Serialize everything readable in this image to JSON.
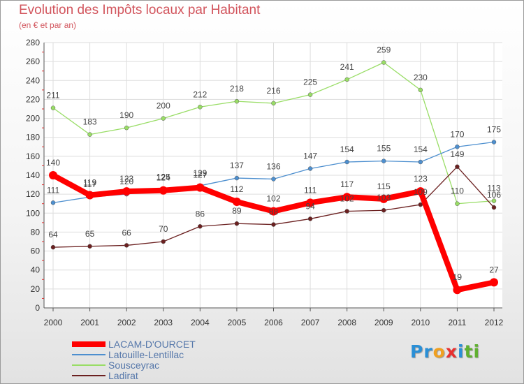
{
  "title": "Evolution des Impôts locaux par Habitant",
  "subtitle": "(en € et par an)",
  "logo": {
    "letters": [
      "P",
      "r",
      "o",
      "x",
      "i",
      "t",
      "i"
    ],
    "colors": [
      "#2a8fd6",
      "#2a8fd6",
      "#f0a020",
      "#e83030",
      "#2a8fd6",
      "#60b030",
      "#60b030"
    ]
  },
  "chart_data": {
    "type": "line",
    "x": [
      "2000",
      "2001",
      "2002",
      "2003",
      "2004",
      "2005",
      "2006",
      "2007",
      "2008",
      "2009",
      "2010",
      "2011",
      "2012"
    ],
    "ylim": [
      0,
      280
    ],
    "yticks": [
      0,
      20,
      40,
      60,
      80,
      100,
      120,
      140,
      160,
      180,
      200,
      220,
      240,
      260,
      280
    ],
    "grid": true,
    "legend_position": "bottom-left",
    "series": [
      {
        "name": "LACAM-D'OURCET",
        "color": "#ff0000",
        "values": [
          140,
          119,
          123,
          124,
          127,
          112,
          102,
          111,
          117,
          115,
          123,
          19,
          27
        ]
      },
      {
        "name": "Latouille-Lentillac",
        "color": "#4d8fcf",
        "values": [
          111,
          117,
          120,
          125,
          129,
          137,
          136,
          147,
          154,
          155,
          154,
          170,
          175
        ]
      },
      {
        "name": "Sousceyrac",
        "color": "#99dd66",
        "values": [
          211,
          183,
          190,
          200,
          212,
          218,
          216,
          225,
          241,
          259,
          230,
          110,
          113
        ]
      },
      {
        "name": "Ladirat",
        "color": "#6b2020",
        "values": [
          64,
          65,
          66,
          70,
          86,
          89,
          88,
          94,
          102,
          103,
          109,
          149,
          106
        ]
      }
    ]
  }
}
